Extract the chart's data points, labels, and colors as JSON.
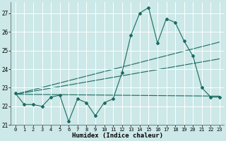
{
  "title": "",
  "xlabel": "Humidex (Indice chaleur)",
  "bg_color": "#cce8e8",
  "grid_color": "#ffffff",
  "line_color": "#1a6b60",
  "xlim": [
    -0.5,
    23.5
  ],
  "ylim": [
    21.0,
    27.6
  ],
  "yticks": [
    21,
    22,
    23,
    24,
    25,
    26,
    27
  ],
  "xticks": [
    0,
    1,
    2,
    3,
    4,
    5,
    6,
    7,
    8,
    9,
    10,
    11,
    12,
    13,
    14,
    15,
    16,
    17,
    18,
    19,
    20,
    21,
    22,
    23
  ],
  "series1": [
    22.7,
    22.1,
    22.1,
    22.0,
    22.5,
    22.6,
    21.2,
    22.4,
    22.2,
    21.5,
    22.2,
    22.4,
    23.8,
    25.8,
    27.0,
    27.3,
    25.4,
    26.7,
    26.5,
    25.5,
    24.7,
    23.0,
    22.5,
    22.5
  ],
  "trend1_x": [
    0,
    23
  ],
  "trend1_y": [
    22.65,
    22.55
  ],
  "trend2_x": [
    0,
    23
  ],
  "trend2_y": [
    22.65,
    24.55
  ],
  "trend3_x": [
    0,
    23
  ],
  "trend3_y": [
    22.65,
    25.45
  ]
}
